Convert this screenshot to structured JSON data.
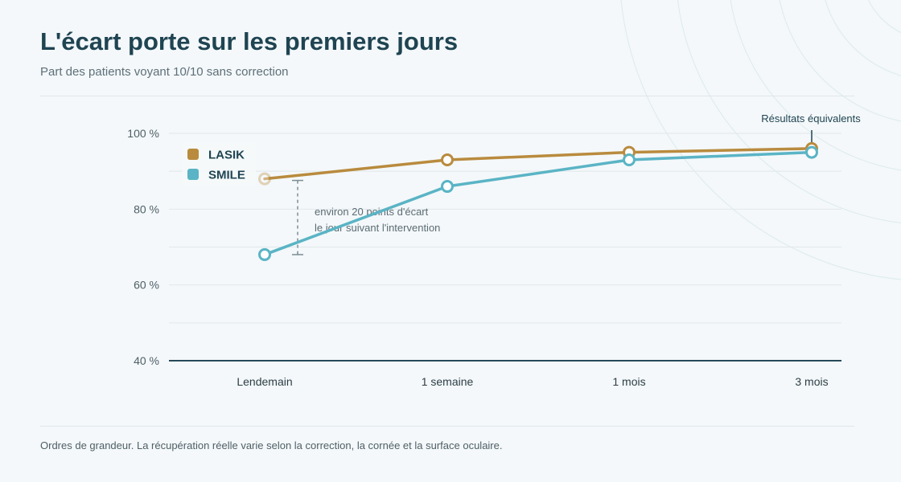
{
  "header": {
    "title": "L'écart porte sur les premiers jours",
    "subtitle": "Part des patients voyant 10/10 sans correction"
  },
  "footnote": "Ordres de grandeur. La récupération réelle varie selon la correction, la cornée et la surface oculaire.",
  "chart_data": {
    "type": "line",
    "categories": [
      "Lendemain",
      "1 semaine",
      "1 mois",
      "3 mois"
    ],
    "series": [
      {
        "name": "LASIK",
        "color": "#b98b3e",
        "values": [
          88,
          93,
          95,
          96
        ]
      },
      {
        "name": "SMILE",
        "color": "#5ab4c5",
        "values": [
          68,
          86,
          93,
          95
        ]
      }
    ],
    "ylim": [
      40,
      100
    ],
    "yticks": [
      40,
      60,
      80,
      100
    ],
    "ytick_labels": [
      "40 %",
      "60 %",
      "80 %",
      "100 %"
    ],
    "grid": true,
    "legend_position": "top-left",
    "annotations": {
      "gap_line1": "environ 20 points d'écart",
      "gap_line2": "le jour suivant l'intervention",
      "equal": "Résultats équivalents"
    }
  }
}
